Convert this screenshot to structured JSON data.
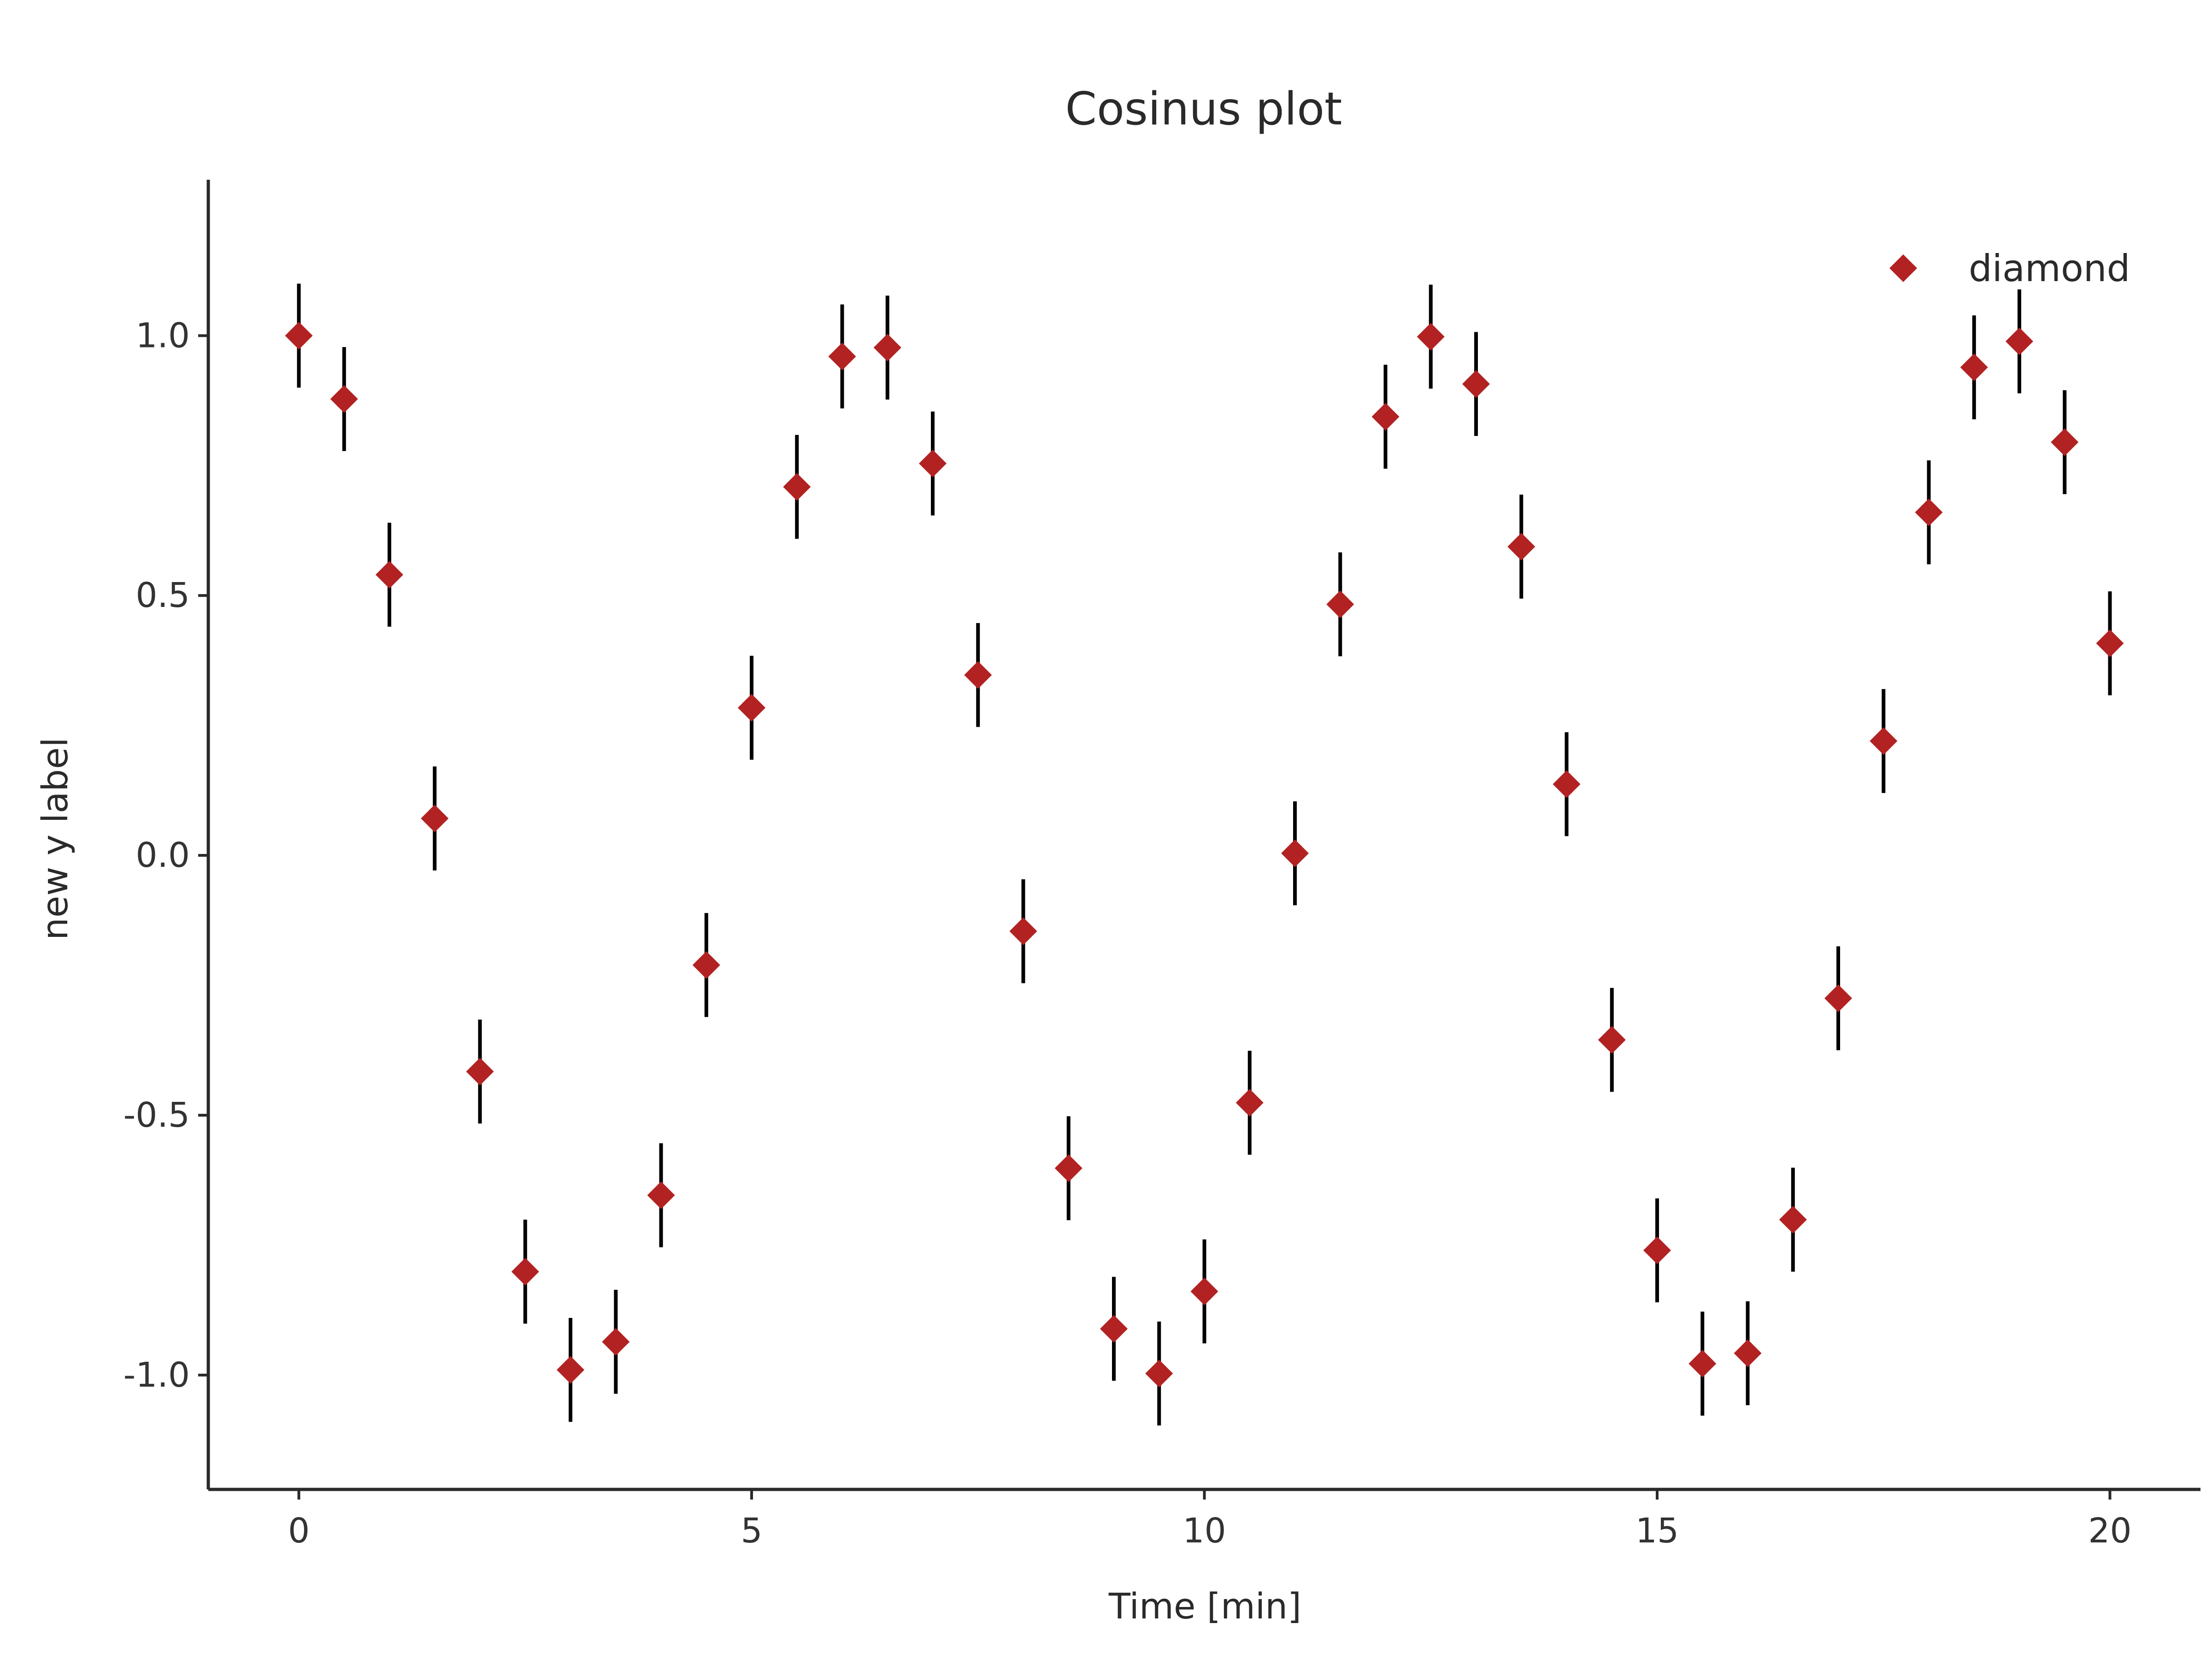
{
  "chart_data": {
    "type": "scatter",
    "title": "Cosinus plot",
    "xlabel": "Time [min]",
    "ylabel": "new y label",
    "xlim": [
      -1,
      21
    ],
    "ylim": [
      -1.22,
      1.3
    ],
    "xticks": [
      0,
      5,
      10,
      15,
      20
    ],
    "xtick_labels": [
      "0",
      "5",
      "10",
      "15",
      "20"
    ],
    "yticks": [
      -1.0,
      -0.5,
      0.0,
      0.5,
      1.0
    ],
    "ytick_labels": [
      "-1.0",
      "-0.5",
      "0.0",
      "0.5",
      "1.0"
    ],
    "grid": false,
    "legend_position": "top-right",
    "series": [
      {
        "name": "diamond",
        "marker": "diamond",
        "color": "#b22222",
        "error_bar_color": "#000000",
        "x": [
          0,
          0.5,
          1,
          1.5,
          2,
          2.5,
          3,
          3.5,
          4,
          4.5,
          5,
          5.5,
          6,
          6.5,
          7,
          7.5,
          8,
          8.5,
          9,
          9.5,
          10,
          10.5,
          11,
          11.5,
          12,
          12.5,
          13,
          13.5,
          14,
          14.5,
          15,
          15.5,
          16,
          16.5,
          17,
          17.5,
          18,
          18.5,
          19,
          19.5,
          20
        ],
        "y": [
          1.0,
          0.878,
          0.54,
          0.071,
          -0.416,
          -0.801,
          -0.99,
          -0.936,
          -0.654,
          -0.211,
          0.284,
          0.709,
          0.96,
          0.977,
          0.754,
          0.347,
          -0.146,
          -0.602,
          -0.911,
          -0.997,
          -0.839,
          -0.476,
          0.004,
          0.483,
          0.844,
          0.998,
          0.907,
          0.594,
          0.137,
          -0.355,
          -0.76,
          -0.978,
          -0.958,
          -0.701,
          -0.275,
          0.22,
          0.66,
          0.939,
          0.989,
          0.795,
          0.408
        ],
        "error": 0.1
      }
    ]
  }
}
